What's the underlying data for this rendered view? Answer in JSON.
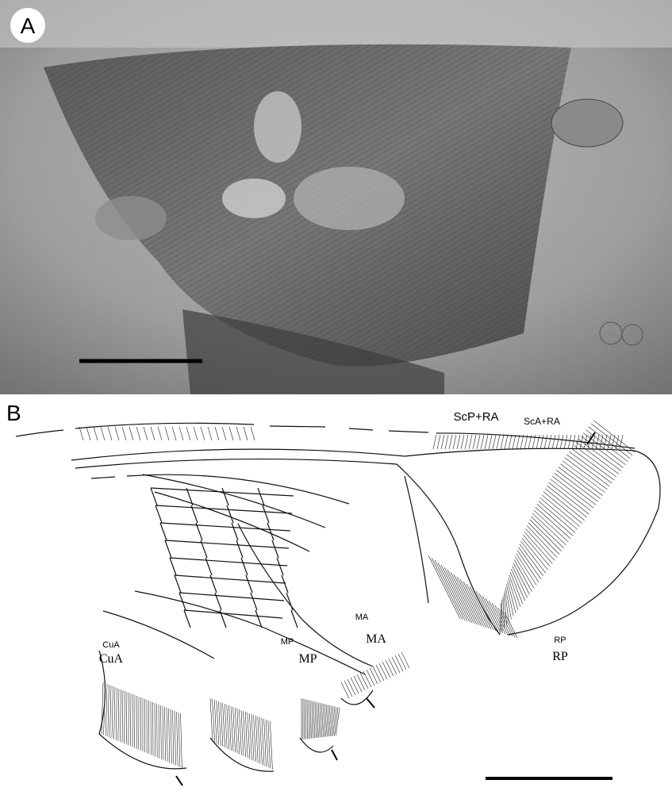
{
  "panels": [
    {
      "label": "A"
    },
    {
      "label": "B",
      "annotations": [
        "ScP+RA",
        "ScA+RA",
        "RP",
        "RP",
        "MA",
        "MA",
        "MP",
        "MP",
        "CuA",
        "CuA"
      ]
    }
  ]
}
